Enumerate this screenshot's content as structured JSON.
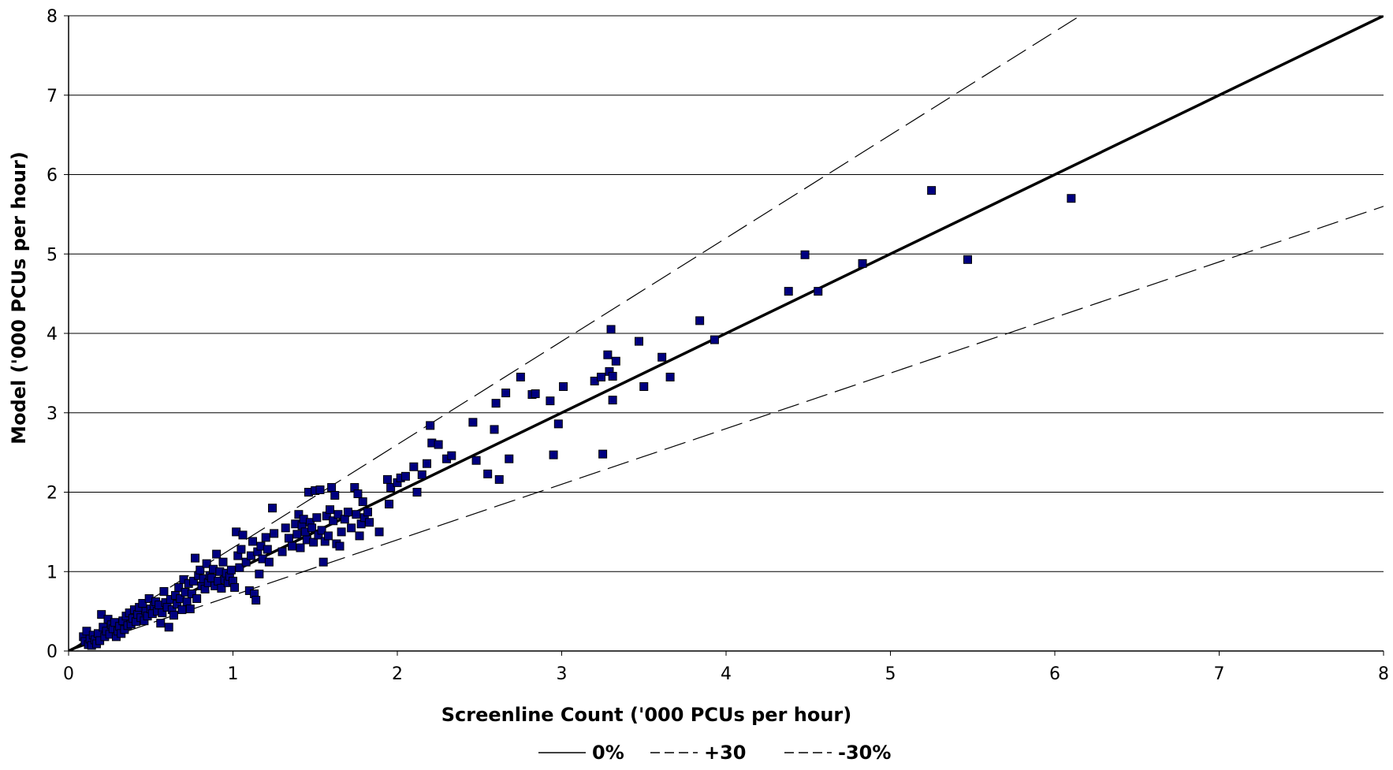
{
  "chart_data": {
    "type": "scatter",
    "xlabel": "Screenline Count ('000 PCUs per hour)",
    "ylabel": "Model ('000 PCUs per hour)",
    "xlim": [
      0,
      8
    ],
    "ylim": [
      0,
      8
    ],
    "x_ticks": [
      "0",
      "1",
      "2",
      "3",
      "4",
      "5",
      "6",
      "7",
      "8"
    ],
    "y_ticks": [
      "0",
      "1",
      "2",
      "3",
      "4",
      "5",
      "6",
      "7",
      "8"
    ],
    "grid": "horizontal",
    "legend": {
      "placement": "bottom-center",
      "entries": [
        {
          "label": "0%",
          "style": "solid"
        },
        {
          "label": "+30",
          "style": "dashed"
        },
        {
          "label": "-30%",
          "style": "dashed"
        }
      ]
    },
    "lines": [
      {
        "name": "0%",
        "slope": 1.0,
        "style": "solid",
        "width": 3.5
      },
      {
        "name": "+30",
        "slope": 1.3,
        "style": "dashed",
        "width": 1.2
      },
      {
        "name": "-30%",
        "slope": 0.7,
        "style": "dashed",
        "width": 1.2
      }
    ],
    "marker_color": "#000080",
    "points": [
      [
        0.09,
        0.18
      ],
      [
        0.1,
        0.12
      ],
      [
        0.11,
        0.25
      ],
      [
        0.12,
        0.08
      ],
      [
        0.13,
        0.15
      ],
      [
        0.14,
        0.07
      ],
      [
        0.15,
        0.2
      ],
      [
        0.16,
        0.14
      ],
      [
        0.17,
        0.09
      ],
      [
        0.18,
        0.22
      ],
      [
        0.19,
        0.13
      ],
      [
        0.2,
        0.46
      ],
      [
        0.21,
        0.3
      ],
      [
        0.22,
        0.18
      ],
      [
        0.23,
        0.25
      ],
      [
        0.24,
        0.4
      ],
      [
        0.25,
        0.21
      ],
      [
        0.26,
        0.33
      ],
      [
        0.27,
        0.28
      ],
      [
        0.28,
        0.36
      ],
      [
        0.29,
        0.18
      ],
      [
        0.3,
        0.25
      ],
      [
        0.31,
        0.31
      ],
      [
        0.32,
        0.22
      ],
      [
        0.33,
        0.38
      ],
      [
        0.34,
        0.27
      ],
      [
        0.35,
        0.44
      ],
      [
        0.36,
        0.32
      ],
      [
        0.37,
        0.48
      ],
      [
        0.38,
        0.34
      ],
      [
        0.39,
        0.41
      ],
      [
        0.4,
        0.52
      ],
      [
        0.41,
        0.37
      ],
      [
        0.42,
        0.46
      ],
      [
        0.43,
        0.55
      ],
      [
        0.44,
        0.42
      ],
      [
        0.45,
        0.6
      ],
      [
        0.46,
        0.38
      ],
      [
        0.47,
        0.5
      ],
      [
        0.48,
        0.44
      ],
      [
        0.49,
        0.66
      ],
      [
        0.5,
        0.53
      ],
      [
        0.51,
        0.47
      ],
      [
        0.52,
        0.57
      ],
      [
        0.53,
        0.62
      ],
      [
        0.54,
        0.5
      ],
      [
        0.55,
        0.58
      ],
      [
        0.56,
        0.35
      ],
      [
        0.57,
        0.48
      ],
      [
        0.58,
        0.75
      ],
      [
        0.59,
        0.61
      ],
      [
        0.6,
        0.55
      ],
      [
        0.61,
        0.3
      ],
      [
        0.62,
        0.65
      ],
      [
        0.63,
        0.52
      ],
      [
        0.64,
        0.45
      ],
      [
        0.65,
        0.7
      ],
      [
        0.66,
        0.59
      ],
      [
        0.67,
        0.8
      ],
      [
        0.68,
        0.66
      ],
      [
        0.69,
        0.52
      ],
      [
        0.7,
        0.9
      ],
      [
        0.71,
        0.74
      ],
      [
        0.72,
        0.62
      ],
      [
        0.73,
        0.85
      ],
      [
        0.74,
        0.53
      ],
      [
        0.75,
        0.72
      ],
      [
        0.76,
        0.88
      ],
      [
        0.77,
        1.17
      ],
      [
        0.78,
        0.66
      ],
      [
        0.79,
        0.95
      ],
      [
        0.8,
        1.02
      ],
      [
        0.81,
        0.82
      ],
      [
        0.82,
        0.91
      ],
      [
        0.83,
        0.78
      ],
      [
        0.84,
        1.1
      ],
      [
        0.85,
        0.86
      ],
      [
        0.86,
        0.95
      ],
      [
        0.87,
        0.92
      ],
      [
        0.88,
        1.03
      ],
      [
        0.89,
        0.82
      ],
      [
        0.9,
        1.22
      ],
      [
        0.91,
        0.88
      ],
      [
        0.92,
        1.0
      ],
      [
        0.93,
        0.79
      ],
      [
        0.94,
        1.12
      ],
      [
        0.95,
        0.9
      ],
      [
        0.96,
        0.98
      ],
      [
        0.97,
        0.86
      ],
      [
        0.98,
        0.94
      ],
      [
        0.99,
        1.02
      ],
      [
        1.0,
        0.88
      ],
      [
        1.01,
        0.8
      ],
      [
        1.02,
        1.5
      ],
      [
        1.03,
        1.2
      ],
      [
        1.04,
        1.05
      ],
      [
        1.05,
        1.28
      ],
      [
        1.06,
        1.46
      ],
      [
        1.08,
        1.12
      ],
      [
        1.1,
        0.76
      ],
      [
        1.11,
        1.2
      ],
      [
        1.12,
        1.38
      ],
      [
        1.13,
        0.72
      ],
      [
        1.14,
        0.64
      ],
      [
        1.15,
        1.25
      ],
      [
        1.16,
        0.97
      ],
      [
        1.17,
        1.32
      ],
      [
        1.18,
        1.16
      ],
      [
        1.2,
        1.43
      ],
      [
        1.21,
        1.28
      ],
      [
        1.22,
        1.12
      ],
      [
        1.24,
        1.8
      ],
      [
        1.25,
        1.48
      ],
      [
        1.3,
        1.25
      ],
      [
        1.32,
        1.55
      ],
      [
        1.34,
        1.42
      ],
      [
        1.36,
        1.32
      ],
      [
        1.38,
        1.6
      ],
      [
        1.39,
        1.47
      ],
      [
        1.4,
        1.72
      ],
      [
        1.41,
        1.3
      ],
      [
        1.42,
        1.58
      ],
      [
        1.43,
        1.66
      ],
      [
        1.44,
        1.5
      ],
      [
        1.45,
        1.4
      ],
      [
        1.46,
        2.0
      ],
      [
        1.47,
        1.62
      ],
      [
        1.48,
        1.55
      ],
      [
        1.49,
        1.37
      ],
      [
        1.5,
        2.02
      ],
      [
        1.51,
        1.68
      ],
      [
        1.52,
        1.46
      ],
      [
        1.53,
        2.03
      ],
      [
        1.54,
        1.52
      ],
      [
        1.55,
        1.12
      ],
      [
        1.56,
        1.38
      ],
      [
        1.57,
        1.7
      ],
      [
        1.58,
        1.45
      ],
      [
        1.59,
        1.78
      ],
      [
        1.6,
        2.06
      ],
      [
        1.61,
        1.64
      ],
      [
        1.62,
        1.96
      ],
      [
        1.63,
        1.35
      ],
      [
        1.64,
        1.72
      ],
      [
        1.65,
        1.32
      ],
      [
        1.66,
        1.5
      ],
      [
        1.68,
        1.66
      ],
      [
        1.7,
        1.75
      ],
      [
        1.72,
        1.55
      ],
      [
        1.74,
        2.06
      ],
      [
        1.75,
        1.72
      ],
      [
        1.76,
        1.98
      ],
      [
        1.77,
        1.45
      ],
      [
        1.78,
        1.6
      ],
      [
        1.79,
        1.88
      ],
      [
        1.8,
        1.68
      ],
      [
        1.82,
        1.75
      ],
      [
        1.83,
        1.62
      ],
      [
        1.89,
        1.5
      ],
      [
        1.94,
        2.16
      ],
      [
        1.95,
        1.85
      ],
      [
        1.96,
        2.06
      ],
      [
        2.0,
        2.12
      ],
      [
        2.02,
        2.18
      ],
      [
        2.05,
        2.2
      ],
      [
        2.1,
        2.32
      ],
      [
        2.12,
        2.0
      ],
      [
        2.15,
        2.22
      ],
      [
        2.18,
        2.36
      ],
      [
        2.2,
        2.84
      ],
      [
        2.21,
        2.62
      ],
      [
        2.25,
        2.6
      ],
      [
        2.3,
        2.42
      ],
      [
        2.33,
        2.46
      ],
      [
        2.46,
        2.88
      ],
      [
        2.48,
        2.4
      ],
      [
        2.55,
        2.23
      ],
      [
        2.59,
        2.79
      ],
      [
        2.6,
        3.12
      ],
      [
        2.62,
        2.16
      ],
      [
        2.66,
        3.25
      ],
      [
        2.68,
        2.42
      ],
      [
        2.75,
        3.45
      ],
      [
        2.82,
        3.23
      ],
      [
        2.84,
        3.24
      ],
      [
        2.93,
        3.15
      ],
      [
        2.95,
        2.47
      ],
      [
        2.98,
        2.86
      ],
      [
        3.01,
        3.33
      ],
      [
        3.2,
        3.4
      ],
      [
        3.24,
        3.45
      ],
      [
        3.25,
        2.48
      ],
      [
        3.28,
        3.73
      ],
      [
        3.29,
        3.52
      ],
      [
        3.3,
        4.05
      ],
      [
        3.31,
        3.46
      ],
      [
        3.31,
        3.16
      ],
      [
        3.33,
        3.65
      ],
      [
        3.47,
        3.9
      ],
      [
        3.5,
        3.33
      ],
      [
        3.61,
        3.7
      ],
      [
        3.66,
        3.45
      ],
      [
        3.84,
        4.16
      ],
      [
        3.93,
        3.92
      ],
      [
        4.38,
        4.53
      ],
      [
        4.48,
        4.99
      ],
      [
        4.56,
        4.53
      ],
      [
        4.83,
        4.88
      ],
      [
        5.25,
        5.8
      ],
      [
        5.47,
        4.93
      ],
      [
        6.1,
        5.7
      ]
    ]
  }
}
